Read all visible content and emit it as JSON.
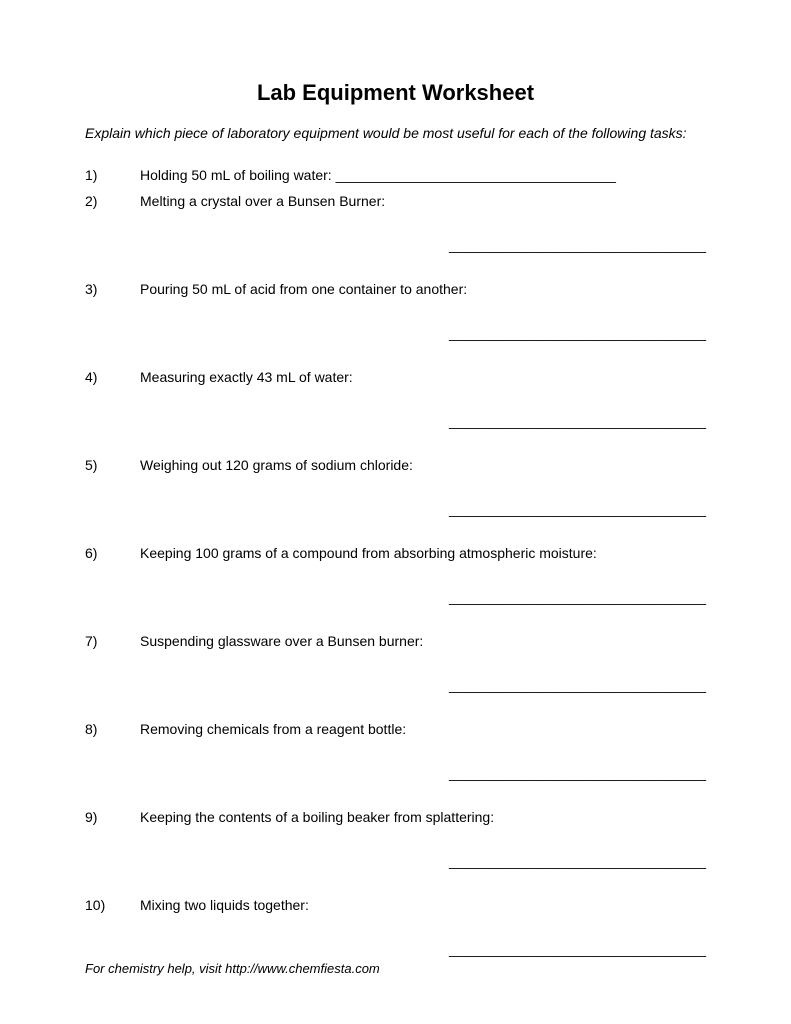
{
  "title": "Lab Equipment Worksheet",
  "instructions": "Explain which piece of laboratory equipment would be most useful for each of the following tasks:",
  "questions": [
    {
      "number": "1)",
      "text": "Holding 50 mL of boiling water: ",
      "inline_blank": true,
      "blank": "____________________________________"
    },
    {
      "number": "2)",
      "text": "Melting a crystal over a Bunsen Burner:",
      "inline_blank": false,
      "blank": "_________________________________"
    },
    {
      "number": "3)",
      "text": "Pouring 50 mL of acid from one container to another:",
      "inline_blank": false,
      "blank": "_________________________________"
    },
    {
      "number": "4)",
      "text": "Measuring exactly 43 mL of water:",
      "inline_blank": false,
      "blank": "_________________________________"
    },
    {
      "number": "5)",
      "text": "Weighing out 120 grams of sodium chloride:",
      "inline_blank": false,
      "blank": "_________________________________"
    },
    {
      "number": "6)",
      "text": "Keeping 100 grams of a compound from absorbing atmospheric moisture:",
      "inline_blank": false,
      "blank": "_________________________________"
    },
    {
      "number": "7)",
      "text": "Suspending glassware over a Bunsen burner:",
      "inline_blank": false,
      "blank": "_________________________________"
    },
    {
      "number": "8)",
      "text": "Removing chemicals from a reagent bottle:",
      "inline_blank": false,
      "blank": "_________________________________"
    },
    {
      "number": "9)",
      "text": "Keeping the contents of a boiling beaker from splattering:",
      "inline_blank": false,
      "blank": "_________________________________"
    },
    {
      "number": "10)",
      "text": "Mixing two liquids together:",
      "inline_blank": false,
      "blank": "_________________________________"
    }
  ],
  "footer": "For chemistry help, visit http://www.chemfiesta.com"
}
